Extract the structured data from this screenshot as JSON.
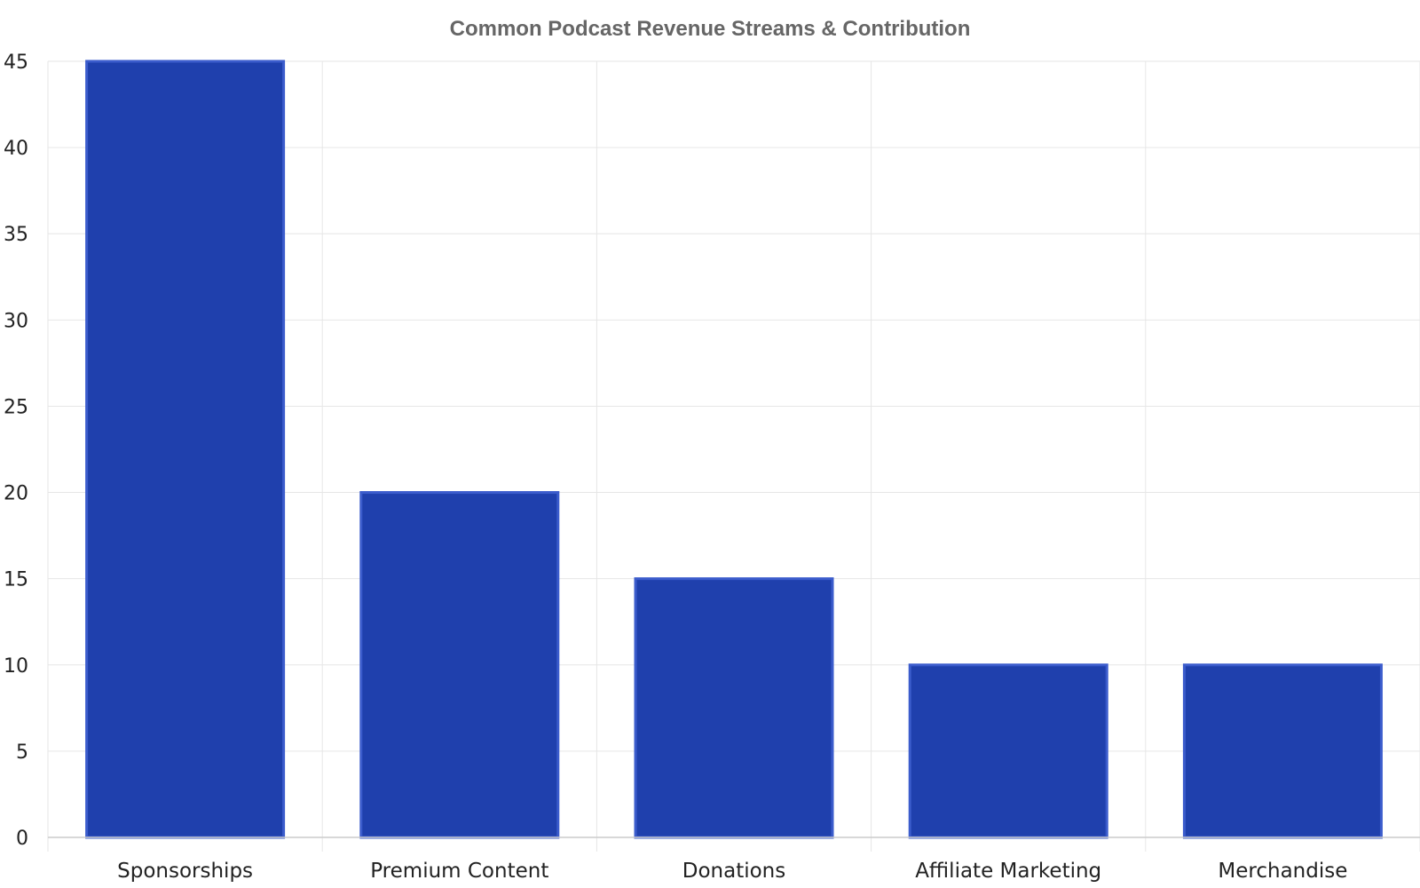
{
  "chart_data": {
    "type": "bar",
    "title": "Common Podcast Revenue Streams & Contribution",
    "xlabel": "",
    "ylabel": "",
    "categories": [
      "Sponsorships",
      "Premium Content",
      "Donations",
      "Affiliate Marketing",
      "Merchandise"
    ],
    "values": [
      45,
      20,
      15,
      10,
      10
    ],
    "ylim": [
      0,
      45
    ],
    "yticks": [
      0,
      5,
      10,
      15,
      20,
      25,
      30,
      35,
      40,
      45
    ],
    "grid": true,
    "bar_color": "#1f40ad",
    "bar_edge_color": "#3b5ccc"
  }
}
